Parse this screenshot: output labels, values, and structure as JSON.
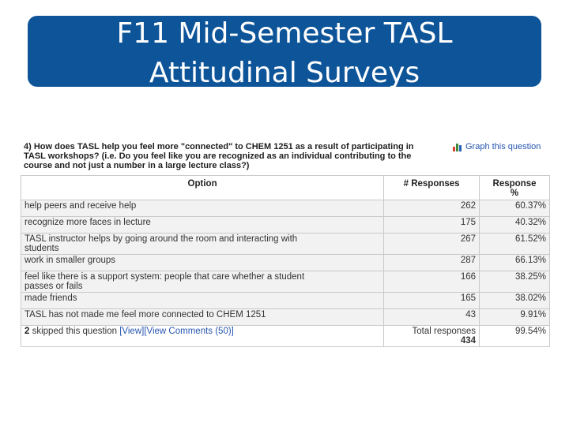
{
  "slide": {
    "title_line1": "F11 Mid-Semester TASL",
    "title_line2": "Attitudinal Surveys"
  },
  "question": {
    "line1": "4) How does TASL help you feel more \"connected\" to CHEM 1251 as a result of participating in",
    "line2": "TASL workshops? (i.e. Do you feel like you are recognized as an individual contributing to the",
    "line3": "course and not just a number in a large lecture class?)",
    "graph_link": "Graph this question",
    "graph_icon": "bar-chart-icon"
  },
  "table": {
    "headers": {
      "option": "Option",
      "responses": "# Responses",
      "percent_line1": "Response",
      "percent_line2": "%"
    },
    "rows": [
      {
        "option_line1": "help peers and receive help",
        "option_line2": "",
        "responses": "262",
        "percent": "60.37%"
      },
      {
        "option_line1": "recognize more faces in lecture",
        "option_line2": "",
        "responses": "175",
        "percent": "40.32%"
      },
      {
        "option_line1": "TASL instructor helps by going around the room and interacting with",
        "option_line2": "students",
        "responses": "267",
        "percent": "61.52%"
      },
      {
        "option_line1": "work in smaller groups",
        "option_line2": "",
        "responses": "287",
        "percent": "66.13%"
      },
      {
        "option_line1": "feel like there is a support system: people that care whether a student",
        "option_line2": "passes or fails",
        "responses": "166",
        "percent": "38.25%"
      },
      {
        "option_line1": "made friends",
        "option_line2": "",
        "responses": "165",
        "percent": "38.02%"
      },
      {
        "option_line1": "TASL has not made me feel more connected to CHEM 1251",
        "option_line2": "",
        "responses": "43",
        "percent": "9.91%"
      }
    ],
    "summary": {
      "skip_count": "2",
      "skip_text": "skipped this question",
      "view_link": "[View]",
      "comments_link": "[View Comments (50)]",
      "total_label": "Total responses",
      "total_count": "434",
      "total_percent": "99.54%"
    }
  }
}
